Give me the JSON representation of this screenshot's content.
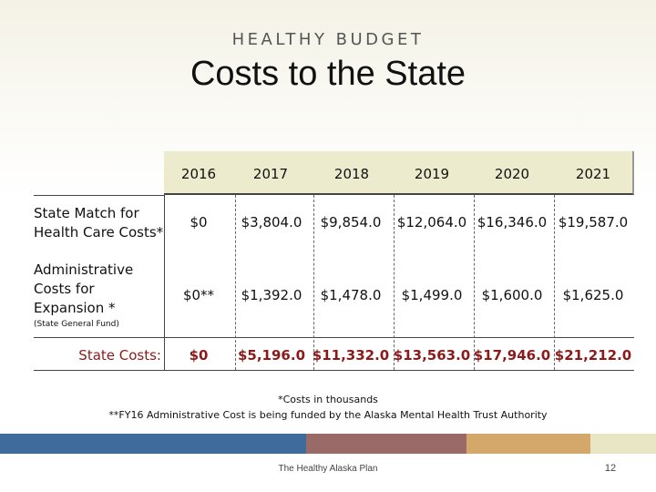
{
  "header": {
    "kicker": "HEALTHY BUDGET",
    "title": "Costs to the State"
  },
  "table": {
    "years": [
      "2016",
      "2017",
      "2018",
      "2019",
      "2020",
      "2021"
    ],
    "rows": [
      {
        "label_line1": "State Match for",
        "label_line2": "Health Care Costs*",
        "values": [
          "$0",
          "$3,804.0",
          "$9,854.0",
          "$12,064.0",
          "$16,346.0",
          "$19,587.0"
        ]
      },
      {
        "label_line1": "Administrative",
        "label_line2": "Costs for",
        "label_line3": "Expansion  *",
        "sublabel": "(State General Fund)",
        "values": [
          "$0**",
          "$1,392.0",
          "$1,478.0",
          "$1,499.0",
          "$1,600.0",
          "$1,625.0"
        ]
      }
    ],
    "total": {
      "label": "State Costs:",
      "values": [
        "$0",
        "$5,196.0",
        "$11,332.0",
        "$13,563.0",
        "$17,946.0",
        "$21,212.0"
      ]
    }
  },
  "notes": {
    "line1": "*Costs in thousands",
    "line2": "**FY16 Administrative Cost is being funded by the Alaska Mental Health Trust Authority"
  },
  "footer": {
    "text": "The Healthy Alaska Plan",
    "page_number": "12"
  },
  "colors": {
    "bar_blue": "#3f6a9c",
    "bar_mauve": "#9a6a68",
    "bar_tan": "#d4a86a",
    "bar_cream": "#e9e6c6",
    "total_red": "#8b1a1a",
    "header_band": "#ecebcd"
  }
}
